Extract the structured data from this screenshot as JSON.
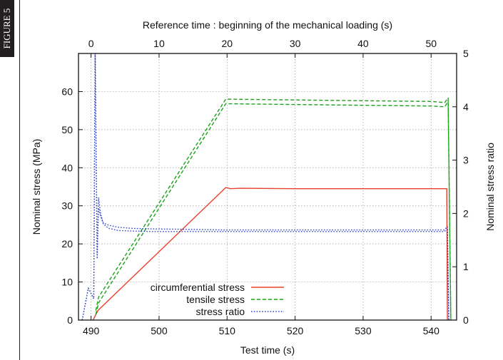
{
  "figure_label": "FIGURE 5",
  "chart_data": {
    "type": "line",
    "title": "",
    "top_axis": {
      "label": "Reference time : beginning of the mechanical loading (s)",
      "range": [
        -1.85,
        53.75
      ],
      "ticks": [
        0,
        10,
        20,
        30,
        40,
        50
      ]
    },
    "xlabel": "Test time (s)",
    "xlim": [
      488.15,
      543.75
    ],
    "xticks": [
      490,
      500,
      510,
      520,
      530,
      540
    ],
    "ylabel": "Nominal stress (MPa)",
    "ylim": [
      0,
      70
    ],
    "yticks": [
      0,
      10,
      20,
      30,
      40,
      50,
      60
    ],
    "y2label": "Nominal stress ratio",
    "y2lim": [
      0,
      5
    ],
    "y2ticks": [
      0,
      1,
      2,
      3,
      4,
      5
    ],
    "grid": true,
    "legend_position": "bottom-left",
    "series": [
      {
        "name": "circumferential stress",
        "axis": "left",
        "color": "#e8402a",
        "style": "solid",
        "x": [
          490.3,
          491.0,
          509.8,
          510.5,
          512,
          520,
          530,
          540,
          542.3,
          542.4
        ],
        "y": [
          0,
          2.5,
          34.8,
          34.5,
          34.6,
          34.5,
          34.5,
          34.5,
          34.5,
          0
        ]
      },
      {
        "name": "tensile stress",
        "axis": "left",
        "color": "#1aa31a",
        "style": "dashed",
        "x": [
          490.7,
          491.1,
          509.8,
          520,
          530,
          540,
          542.0,
          542.5,
          542.9
        ],
        "y": [
          2.5,
          6,
          58.0,
          57.8,
          57.6,
          57.4,
          57.1,
          58.3,
          0
        ]
      },
      {
        "name": "tensile stress (lower)",
        "axis": "left",
        "color": "#1aa31a",
        "style": "dashed",
        "x": [
          490.7,
          491.1,
          509.8,
          520,
          530,
          540,
          542.0,
          542.5,
          542.9
        ],
        "y": [
          1.5,
          4.5,
          56.8,
          56.6,
          56.4,
          56.2,
          56.0,
          57.4,
          0
        ]
      },
      {
        "name": "stress ratio",
        "axis": "right",
        "color": "#3347c8",
        "style": "dotted",
        "x": [
          488.7,
          489.6,
          490.4,
          490.6,
          490.9,
          491.1,
          491.4,
          491.8,
          492.6,
          494,
          496,
          499,
          505,
          510,
          520,
          530,
          540,
          541.9,
          542.4,
          542.6
        ],
        "y": [
          0,
          0.6,
          0.4,
          5.0,
          1.15,
          2.3,
          2.0,
          1.8,
          1.72,
          1.68,
          1.67,
          1.66,
          1.66,
          1.66,
          1.66,
          1.66,
          1.66,
          1.66,
          1.7,
          0
        ]
      },
      {
        "name": "stress ratio (upper)",
        "axis": "right",
        "color": "#3347c8",
        "style": "dotted",
        "x": [
          488.7,
          489.6,
          490.4,
          490.6,
          490.9,
          491.1,
          491.4,
          491.8,
          492.6,
          494,
          496,
          499,
          505,
          510,
          520,
          530,
          540,
          541.9,
          542.4,
          542.6
        ],
        "y": [
          0,
          0.6,
          0.4,
          5.0,
          1.25,
          2.1,
          1.95,
          1.82,
          1.78,
          1.74,
          1.72,
          1.71,
          1.7,
          1.69,
          1.69,
          1.69,
          1.69,
          1.69,
          1.75,
          0
        ]
      }
    ],
    "legend": [
      {
        "label": "circumferential stress",
        "color": "#e8402a",
        "style": "solid"
      },
      {
        "label": "tensile stress",
        "color": "#1aa31a",
        "style": "dashed"
      },
      {
        "label": "stress ratio",
        "color": "#3347c8",
        "style": "dotted"
      }
    ]
  }
}
